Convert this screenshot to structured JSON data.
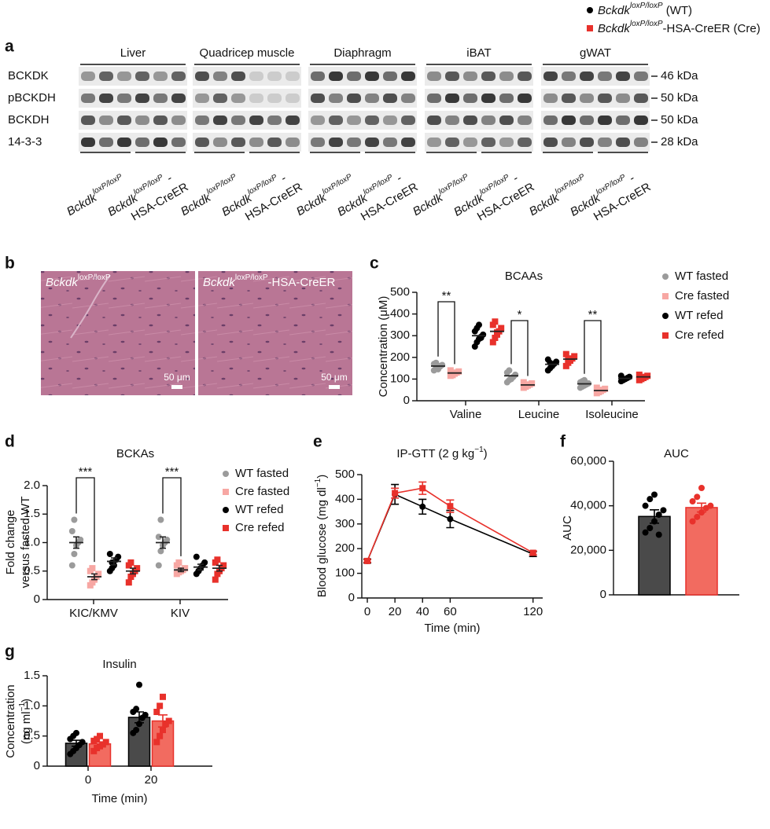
{
  "panel_labels": [
    "a",
    "b",
    "c",
    "d",
    "e",
    "f",
    "g"
  ],
  "legend": {
    "items": [
      {
        "gene": "Bckdk",
        "allele": "loxP/loxP",
        "suffix": " (WT)",
        "color": "#000000"
      },
      {
        "gene": "Bckdk",
        "allele": "loxP/loxP",
        "suffix": "-HSA-CreER (Cre)",
        "color": "#e8312b"
      }
    ]
  },
  "blot": {
    "tissues": [
      "Liver",
      "Quadricep muscle",
      "Diaphragm",
      "iBAT",
      "gWAT"
    ],
    "rows": [
      "BCKDK",
      "pBCKDH",
      "BCKDH",
      "14-3-3"
    ],
    "sizes": [
      "46 kDa",
      "50 kDa",
      "50 kDa",
      "28 kDa"
    ],
    "genotypes": [
      {
        "gene": "Bckdk",
        "allele": "loxP/loxP"
      },
      {
        "gene": "Bckdk",
        "allele": "loxP/loxP",
        "suffix": " -",
        "line2": "HSA-CreER"
      }
    ]
  },
  "histology": {
    "panels": [
      {
        "gene": "Bckdk",
        "allele": "loxP/loxP"
      },
      {
        "gene": "Bckdk",
        "allele": "loxP/loxP",
        "suffix": "-HSA-CreER"
      }
    ],
    "scale_bar": "50 μm"
  },
  "chart_data": [
    {
      "type": "strip",
      "title": "BCAAs",
      "ylabel": "Concentration (μM)",
      "categories": [
        "Valine",
        "Leucine",
        "Isoleucine"
      ],
      "ylim": [
        0,
        500
      ],
      "yticks": [
        0,
        100,
        200,
        300,
        400,
        500
      ],
      "annotations": [
        "**",
        "*",
        "**"
      ],
      "series": [
        {
          "name": "WT fasted",
          "color": "#9b9b9b",
          "marker": "circle",
          "values": [
            160,
            115,
            78
          ],
          "points": [
            [
              140,
              150,
              155,
              160,
              165,
              170,
              175,
              145,
              158
            ],
            [
              85,
              95,
              100,
              110,
              120,
              130,
              140,
              105
            ],
            [
              60,
              65,
              70,
              75,
              80,
              85,
              90,
              95
            ]
          ]
        },
        {
          "name": "Cre fasted",
          "color": "#f7a7a3",
          "marker": "square",
          "values": [
            128,
            73,
            47
          ],
          "points": [
            [
              115,
              120,
              125,
              130,
              135,
              140,
              118,
              128
            ],
            [
              60,
              65,
              70,
              75,
              80,
              85,
              68
            ],
            [
              35,
              40,
              45,
              50,
              55,
              60,
              42
            ]
          ]
        },
        {
          "name": "WT refed",
          "color": "#000000",
          "marker": "circle",
          "values": [
            300,
            168,
            103
          ],
          "points": [
            [
              250,
              270,
              285,
              295,
              305,
              320,
              335,
              350,
              290
            ],
            [
              140,
              150,
              160,
              170,
              180,
              190,
              175,
              165
            ],
            [
              90,
              95,
              100,
              105,
              110,
              115,
              98
            ]
          ]
        },
        {
          "name": "Cre refed",
          "color": "#e8312b",
          "marker": "square",
          "values": [
            320,
            192,
            110
          ],
          "points": [
            [
              270,
              290,
              305,
              320,
              335,
              350,
              365,
              315
            ],
            [
              160,
              175,
              185,
              195,
              205,
              215,
              190
            ],
            [
              95,
              100,
              105,
              110,
              115,
              120,
              108
            ]
          ]
        }
      ]
    },
    {
      "type": "strip",
      "title": "BCKAs",
      "ylabel": [
        "Fold change",
        "versus fasted WT"
      ],
      "categories": [
        "KIC/KMV",
        "KIV"
      ],
      "ylim": [
        0,
        2
      ],
      "yticks": [
        0,
        0.5,
        {
          "value": 1,
          "label": "1.0"
        },
        1.5,
        {
          "value": 2,
          "label": "2.0"
        }
      ],
      "annotations": [
        "***",
        "***"
      ],
      "series": [
        {
          "name": "WT fasted",
          "color": "#9b9b9b",
          "marker": "circle",
          "values": [
            1.0,
            1.0
          ],
          "errors": [
            0.1,
            0.1
          ],
          "points": [
            [
              0.6,
              0.8,
              0.95,
              1.0,
              1.05,
              1.2,
              1.4
            ],
            [
              0.6,
              0.85,
              0.95,
              1.0,
              1.05,
              1.1,
              1.4
            ]
          ]
        },
        {
          "name": "Cre fasted",
          "color": "#f7a7a3",
          "marker": "square",
          "values": [
            0.4,
            0.52
          ],
          "errors": [
            0.05,
            0.03
          ],
          "points": [
            [
              0.25,
              0.3,
              0.35,
              0.4,
              0.45,
              0.5,
              0.55
            ],
            [
              0.45,
              0.48,
              0.5,
              0.52,
              0.55,
              0.6,
              0.65
            ]
          ]
        },
        {
          "name": "WT refed",
          "color": "#000000",
          "marker": "circle",
          "values": [
            0.67,
            0.57
          ],
          "errors": [
            0.06,
            0.05
          ],
          "points": [
            [
              0.5,
              0.55,
              0.6,
              0.7,
              0.75,
              0.8,
              0.65
            ],
            [
              0.45,
              0.5,
              0.55,
              0.6,
              0.65,
              0.75,
              0.5
            ]
          ]
        },
        {
          "name": "Cre refed",
          "color": "#e8312b",
          "marker": "square",
          "values": [
            0.5,
            0.55
          ],
          "errors": [
            0.05,
            0.05
          ],
          "points": [
            [
              0.3,
              0.4,
              0.45,
              0.5,
              0.55,
              0.6,
              0.65
            ],
            [
              0.35,
              0.45,
              0.5,
              0.55,
              0.6,
              0.65,
              0.7
            ]
          ]
        }
      ]
    },
    {
      "type": "line",
      "title": [
        "IP-GTT (2 g kg",
        "−1",
        ")"
      ],
      "ylabel": [
        "Blood glucose (mg dl",
        "−1",
        ")"
      ],
      "xlabel": "Time (min)",
      "x": [
        0,
        20,
        40,
        60,
        120
      ],
      "xlim": [
        -4,
        127
      ],
      "xticks": [
        0,
        20,
        40,
        60,
        120
      ],
      "ylim": [
        0,
        500
      ],
      "yticks": [
        0,
        100,
        200,
        300,
        400,
        500
      ],
      "series": [
        {
          "color": "#000000",
          "marker": "circle",
          "values": [
            150,
            420,
            370,
            320,
            178
          ],
          "errors": [
            8,
            40,
            30,
            35,
            10
          ]
        },
        {
          "color": "#e8312b",
          "marker": "square",
          "values": [
            150,
            425,
            445,
            372,
            183
          ],
          "errors": [
            5,
            20,
            25,
            25,
            8
          ]
        }
      ]
    },
    {
      "type": "bar",
      "title": "AUC",
      "ylabel": "AUC",
      "ylim": [
        0,
        60000
      ],
      "yticks": [
        0,
        {
          "value": 20000,
          "label": "20,000"
        },
        {
          "value": 40000,
          "label": "40,000"
        },
        {
          "value": 60000,
          "label": "60,000"
        }
      ],
      "series": [
        {
          "color": "#4a4a4a",
          "point_color": "#000000",
          "marker": "circle",
          "values": [
            35200
          ],
          "errors": [
            3000
          ],
          "points": [
            [
              28000,
              30000,
              33000,
              36000,
              38000,
              40000,
              43000,
              45000,
              27000
            ]
          ]
        },
        {
          "color": "#f26b60",
          "point_color": "#e8312b",
          "marker": "circle",
          "values": [
            39200
          ],
          "errors": [
            2000
          ],
          "points": [
            [
              33000,
              35000,
              37000,
              39000,
              40000,
              42000,
              44000,
              48000
            ]
          ]
        }
      ]
    },
    {
      "type": "bar",
      "title": "Insulin",
      "ylabel": [
        "Concentration",
        "(ng ml",
        "−1",
        ")"
      ],
      "xlabel": "Time (min)",
      "categories": [
        "0",
        "20"
      ],
      "ylim": [
        0,
        1.5
      ],
      "yticks": [
        0,
        0.5,
        {
          "value": 1,
          "label": "1.0"
        },
        1.5
      ],
      "series": [
        {
          "color": "#4a4a4a",
          "point_color": "#000000",
          "marker": "circle",
          "values": [
            0.38,
            0.81
          ],
          "errors": [
            0.05,
            0.09
          ],
          "points": [
            [
              0.2,
              0.25,
              0.3,
              0.35,
              0.4,
              0.45,
              0.5,
              0.55
            ],
            [
              0.55,
              0.6,
              0.7,
              0.8,
              0.85,
              0.9,
              0.95,
              1.35
            ]
          ]
        },
        {
          "color": "#f26b60",
          "point_color": "#e8312b",
          "marker": "square",
          "values": [
            0.37,
            0.75
          ],
          "errors": [
            0.03,
            0.1
          ],
          "points": [
            [
              0.25,
              0.3,
              0.33,
              0.36,
              0.4,
              0.42,
              0.45,
              0.5
            ],
            [
              0.4,
              0.5,
              0.6,
              0.7,
              0.75,
              0.9,
              1.0,
              1.15
            ]
          ]
        }
      ]
    }
  ]
}
